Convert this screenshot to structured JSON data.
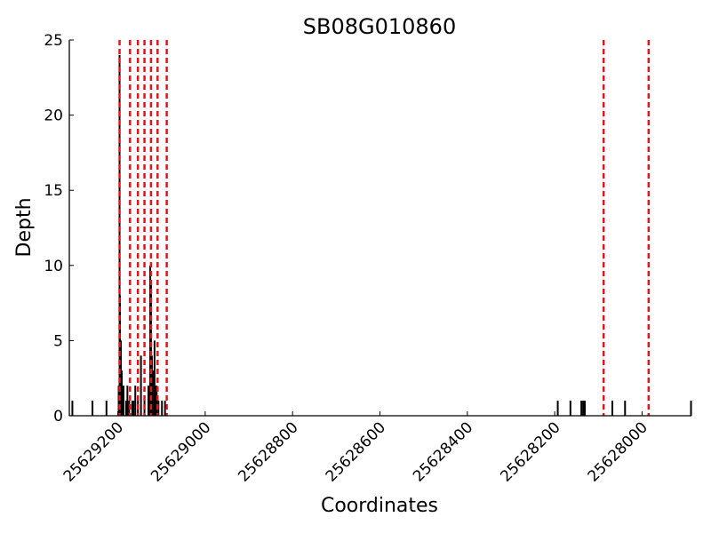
{
  "chart_data": {
    "type": "bar",
    "title": "SB08G010860",
    "xlabel": "Coordinates",
    "ylabel": "Depth",
    "x_reversed": true,
    "xlim": [
      25629311,
      25627887
    ],
    "ylim": [
      0,
      25
    ],
    "x_ticks": [
      25629200,
      25629000,
      25628800,
      25628600,
      25628400,
      25628200,
      25628000
    ],
    "x_tick_labels": [
      "25629200",
      "25629000",
      "25628800",
      "25628600",
      "25628400",
      "25628200",
      "25628000"
    ],
    "y_ticks": [
      0,
      5,
      10,
      15,
      20,
      25
    ],
    "y_tick_labels": [
      "0",
      "5",
      "10",
      "15",
      "20",
      "25"
    ],
    "grid": false,
    "series": [
      {
        "color": "#000000",
        "x": [
          25629304,
          25629258,
          25629226,
          25629198,
          25629196,
          25629195,
          25629193,
          25629191,
          25629187,
          25629181,
          25629178,
          25629174,
          25629167,
          25629164,
          25629160,
          25629154,
          25629147,
          25629139,
          25629130,
          25629126,
          25629124,
          25629122,
          25629119,
          25629116,
          25629114,
          25629111,
          25629107,
          25629099,
          25629092,
          25628193,
          25628164,
          25628139,
          25628135,
          25628133,
          25628131,
          25628068,
          25628039,
          25627888
        ],
        "y": [
          1,
          1,
          1,
          2,
          24,
          8,
          5,
          3,
          2,
          1,
          2,
          1,
          1,
          1,
          2,
          1,
          4,
          1,
          2,
          10,
          9,
          4,
          3,
          5,
          2,
          2,
          1,
          1,
          1,
          1,
          1,
          1,
          1,
          1,
          1,
          1,
          1,
          1
        ]
      }
    ],
    "vlines": {
      "color": "#e8121b",
      "style": "dashed",
      "x": [
        25629196,
        25629172,
        25629154,
        25629139,
        25629124,
        25629109,
        25629088,
        25628088,
        25627985
      ]
    }
  }
}
